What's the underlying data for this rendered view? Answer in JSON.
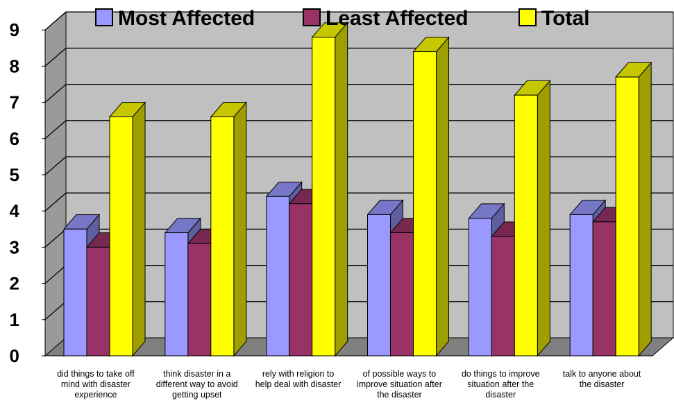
{
  "chart_data": {
    "type": "bar",
    "title": "",
    "xlabel": "",
    "ylabel": "",
    "ylim": [
      0,
      9
    ],
    "yticks": [
      "0",
      "1",
      "2",
      "3",
      "4",
      "5",
      "6",
      "7",
      "8",
      "9"
    ],
    "grid": true,
    "legend_position": "top",
    "three_d": true,
    "categories": [
      [
        "did things to take off",
        "mind with disaster",
        "experience"
      ],
      [
        "think disaster in a",
        "different way to avoid",
        "getting upset"
      ],
      [
        "rely with religion to",
        "help deal with disaster"
      ],
      [
        "of possible ways to",
        "improve situation after",
        "the disaster"
      ],
      [
        "do things to improve",
        "situation after the",
        "disaster"
      ],
      [
        "talk to anyone about",
        "the disaster"
      ]
    ],
    "series": [
      {
        "name": "Most Affected",
        "color": "#9999ff",
        "values": [
          3.5,
          3.4,
          4.4,
          3.9,
          3.8,
          3.9
        ]
      },
      {
        "name": "Least Affected",
        "color": "#993366",
        "values": [
          3.0,
          3.1,
          4.2,
          3.4,
          3.3,
          3.7
        ]
      },
      {
        "name": "Total",
        "color": "#ffff00",
        "values": [
          6.6,
          6.6,
          8.8,
          8.4,
          7.2,
          7.7
        ]
      }
    ]
  }
}
